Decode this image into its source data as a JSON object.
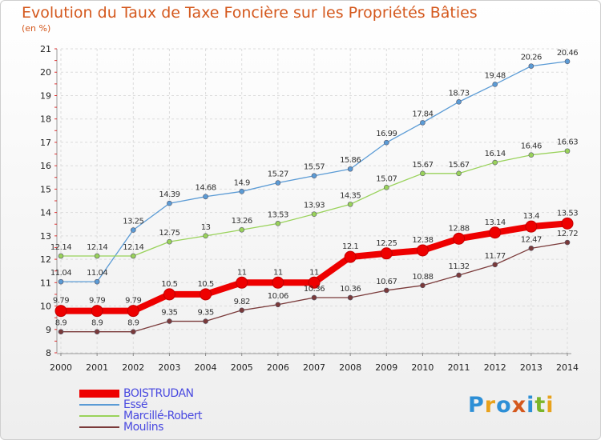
{
  "title": "Evolution du Taux de Taxe Foncière sur les Propriétés Bâties",
  "unit_label": "(en %)",
  "logo": {
    "text": "Proxiti",
    "colors": [
      "#2d8fd6",
      "#e8a21c",
      "#2d8fd6",
      "#d4581d",
      "#2d8fd6",
      "#7bb52a",
      "#e8a21c"
    ]
  },
  "chart_data": {
    "type": "line",
    "x": [
      "2000",
      "2001",
      "2002",
      "2003",
      "2004",
      "2005",
      "2006",
      "2007",
      "2008",
      "2009",
      "2010",
      "2011",
      "2012",
      "2013",
      "2014"
    ],
    "ylim": [
      8,
      21
    ],
    "yticks": [
      "8",
      "9",
      "10",
      "11",
      "12",
      "13",
      "14",
      "15",
      "16",
      "17",
      "18",
      "19",
      "20",
      "21"
    ],
    "grid": true,
    "legend_position": "bottom-left",
    "series": [
      {
        "name": "BOISTRUDAN",
        "color": "#ee0000",
        "values": [
          9.79,
          9.79,
          9.79,
          10.5,
          10.5,
          11,
          11,
          11,
          12.1,
          12.25,
          12.38,
          12.88,
          13.14,
          13.4,
          13.53
        ],
        "labels": [
          "9.79",
          "9.79",
          "9.79",
          "10.5",
          "10.5",
          "11",
          "11",
          "11",
          "12.1",
          "12.25",
          "12.38",
          "12.88",
          "13.14",
          "13.4",
          "13.53"
        ]
      },
      {
        "name": "Essé",
        "color": "#5b9bd5",
        "values": [
          11.04,
          11.04,
          13.25,
          14.39,
          14.68,
          14.9,
          15.27,
          15.57,
          15.86,
          16.99,
          17.84,
          18.73,
          19.48,
          20.26,
          20.46
        ],
        "labels": [
          "11.04",
          "11.04",
          "13.25",
          "14.39",
          "14.68",
          "14.9",
          "15.27",
          "15.57",
          "15.86",
          "16.99",
          "17.84",
          "18.73",
          "19.48",
          "20.26",
          "20.46"
        ]
      },
      {
        "name": "Marcillé-Robert",
        "color": "#99d25a",
        "values": [
          12.14,
          12.14,
          12.14,
          12.75,
          13,
          13.26,
          13.53,
          13.93,
          14.35,
          15.07,
          15.67,
          15.67,
          16.14,
          16.46,
          16.63
        ],
        "labels": [
          "12.14",
          "12.14",
          "12.14",
          "12.75",
          "13",
          "13.26",
          "13.53",
          "13.93",
          "14.35",
          "15.07",
          "15.67",
          "15.67",
          "16.14",
          "16.46",
          "16.63"
        ]
      },
      {
        "name": "Moulins",
        "color": "#7a3a3a",
        "values": [
          8.9,
          8.9,
          8.9,
          9.35,
          9.35,
          9.82,
          10.06,
          10.36,
          10.36,
          10.67,
          10.88,
          11.32,
          11.77,
          12.47,
          12.72
        ],
        "labels": [
          "8.9",
          "8.9",
          "8.9",
          "9.35",
          "9.35",
          "9.82",
          "10.06",
          "10.36",
          "10.36",
          "10.67",
          "10.88",
          "11.32",
          "11.77",
          "12.47",
          "12.72"
        ]
      }
    ]
  }
}
